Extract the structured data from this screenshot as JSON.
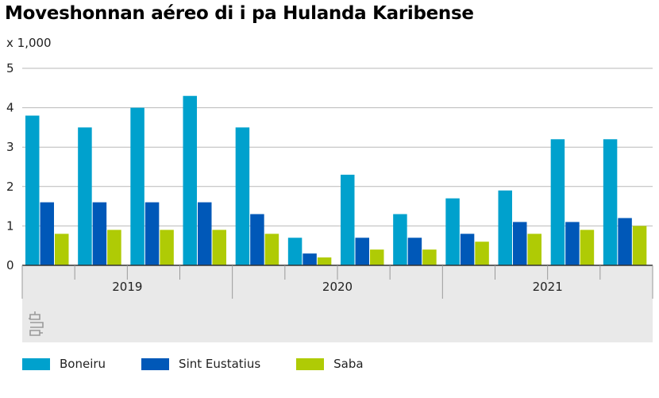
{
  "title": "Moveshonnan aéreo di i pa Hulanda Karibense",
  "chart_data": {
    "type": "bar",
    "unit_label": "x 1,000",
    "ylim": [
      0,
      5
    ],
    "yticks": [
      "0",
      "1",
      "2",
      "3",
      "4",
      "5"
    ],
    "grid": true,
    "years": [
      "2019",
      "2020",
      "2021"
    ],
    "quarters_per_year": 4,
    "colors": {
      "Boneiru": "#00a1cd",
      "Sint Eustatius": "#0058b8",
      "Saba": "#afcb05"
    },
    "series": [
      {
        "name": "Boneiru",
        "values": [
          3.8,
          3.5,
          4.0,
          4.3,
          3.5,
          0.7,
          2.3,
          1.3,
          1.7,
          1.9,
          3.2,
          3.2
        ]
      },
      {
        "name": "Sint Eustatius",
        "values": [
          1.6,
          1.6,
          1.6,
          1.6,
          1.3,
          0.3,
          0.7,
          0.7,
          0.8,
          1.1,
          1.1,
          1.2
        ]
      },
      {
        "name": "Saba",
        "values": [
          0.8,
          0.9,
          0.9,
          0.9,
          0.8,
          0.2,
          0.4,
          0.4,
          0.6,
          0.8,
          0.9,
          1.0
        ]
      }
    ],
    "legend_position": "bottom-left"
  },
  "icons": {
    "logo": "cbs-logo-icon"
  }
}
